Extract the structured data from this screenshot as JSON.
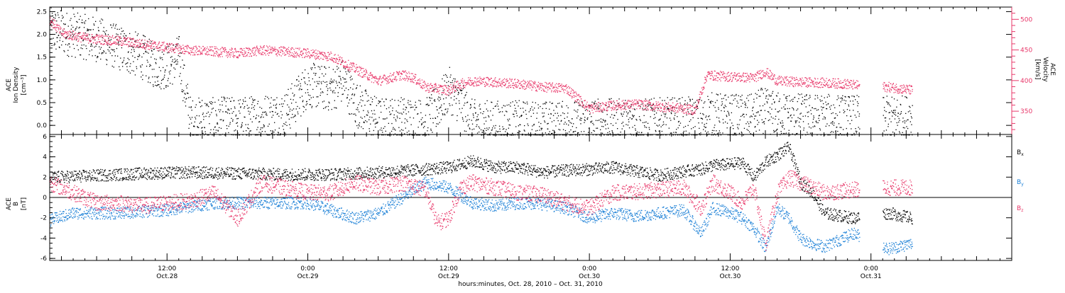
{
  "colors": {
    "black": "#000000",
    "pink": "#e8386a",
    "blue": "#1a7fd6",
    "axis": "#000000"
  },
  "time_axis": {
    "title": "hours:minutes, Oct. 28, 2010 – Oct. 31, 2010",
    "start_hour": 2.0,
    "end_hour": 84.0,
    "major_ticks": [
      {
        "hour": 12,
        "time": "12:00",
        "date": "Oct.28"
      },
      {
        "hour": 24,
        "time": "0:00",
        "date": "Oct.29"
      },
      {
        "hour": 36,
        "time": "12:00",
        "date": "Oct.29"
      },
      {
        "hour": 48,
        "time": "0:00",
        "date": "Oct.30"
      },
      {
        "hour": 60,
        "time": "12:00",
        "date": "Oct.30"
      },
      {
        "hour": 72,
        "time": "0:00",
        "date": "Oct.31"
      }
    ]
  },
  "chart_data": [
    {
      "type": "scatter",
      "panel": "top",
      "ylabel_left": [
        "ACE",
        "Ion Density",
        "[cm⁻³]"
      ],
      "ylabel_right": [
        "ACE",
        "Velocity",
        "[km/s]"
      ],
      "ylim_left": [
        -0.2,
        2.6
      ],
      "left_ticks": [
        "0.0",
        "0.5",
        "1.0",
        "1.5",
        "2.0",
        "2.5"
      ],
      "ylim_right": [
        312,
        520
      ],
      "right_ticks": [
        "350",
        "400",
        "450",
        "500"
      ],
      "data_gap_hours": [
        71.0,
        73.0
      ],
      "series": [
        {
          "axis": "left",
          "color_key": "black",
          "jitter": 0.5,
          "points_per_hour": 40,
          "x": [
            2.0,
            4,
            6,
            8,
            10,
            11,
            12,
            13,
            14,
            15,
            16,
            17,
            18,
            20,
            22,
            24,
            26,
            27,
            28,
            29,
            30,
            32,
            34,
            35,
            36,
            37,
            38,
            40,
            42,
            44,
            46,
            48,
            50,
            52,
            54,
            56,
            57.8,
            58,
            60,
            62,
            62.5,
            64,
            66,
            68,
            70.6,
            73.5,
            75.5
          ],
          "y": [
            2.1,
            2.0,
            1.9,
            1.7,
            1.5,
            1.3,
            1.3,
            1.5,
            0.1,
            0.15,
            0.12,
            0.15,
            0.13,
            0.2,
            0.25,
            0.9,
            0.8,
            1.0,
            0.5,
            0.3,
            0.12,
            0.15,
            0.1,
            0.4,
            0.8,
            0.5,
            0.08,
            0.06,
            0.06,
            0.05,
            0.05,
            0.12,
            0.1,
            0.1,
            0.12,
            0.14,
            0.12,
            0.25,
            0.2,
            0.2,
            0.35,
            0.25,
            0.22,
            0.2,
            0.18,
            0.15,
            0.2
          ]
        },
        {
          "axis": "right",
          "color_key": "pink",
          "jitter": 8,
          "points_per_hour": 40,
          "x": [
            2.0,
            3.0,
            5,
            8,
            10,
            12,
            14,
            16,
            18,
            20,
            22,
            24,
            26,
            28,
            30,
            32,
            33,
            34,
            36,
            37,
            38,
            40,
            42,
            44,
            46,
            48,
            50,
            52,
            54,
            56,
            57,
            58,
            59,
            60,
            62,
            63,
            64,
            66,
            68,
            70,
            70.6,
            73.5,
            75.5
          ],
          "y": [
            500,
            478,
            470,
            465,
            460,
            455,
            450,
            448,
            445,
            450,
            448,
            445,
            440,
            420,
            400,
            410,
            405,
            390,
            385,
            395,
            400,
            398,
            395,
            390,
            388,
            355,
            360,
            362,
            358,
            355,
            352,
            410,
            408,
            407,
            405,
            415,
            400,
            398,
            397,
            395,
            393,
            390,
            385
          ]
        }
      ]
    },
    {
      "type": "scatter",
      "panel": "bottom",
      "ylabel_left": [
        "ACE",
        "B",
        "[nT]"
      ],
      "ylim": [
        -6.2,
        6.2
      ],
      "left_ticks": [
        "-6",
        "-4",
        "-2",
        "0",
        "2",
        "4",
        "6"
      ],
      "zero_line": true,
      "data_gap_hours": [
        71.0,
        73.0
      ],
      "legend_position": "right",
      "series": [
        {
          "name": "B",
          "subscript": "x",
          "color_key": "black",
          "jitter": 0.6,
          "points_per_hour": 40,
          "x": [
            2.0,
            6,
            10,
            14,
            18,
            22,
            26,
            30,
            34,
            36,
            38,
            40,
            42,
            44,
            46,
            48,
            50,
            52,
            54,
            56,
            57.5,
            58.5,
            60,
            61,
            62,
            63,
            64,
            65,
            66,
            67,
            68,
            70.5,
            73.5,
            75.5
          ],
          "y": [
            2.0,
            2.2,
            2.4,
            2.5,
            2.4,
            2.3,
            2.3,
            2.5,
            2.8,
            3.0,
            3.6,
            3.0,
            3.0,
            2.5,
            2.7,
            2.8,
            3.0,
            2.6,
            2.2,
            2.6,
            2.8,
            3.2,
            3.3,
            3.5,
            2.0,
            3.5,
            4.2,
            5.0,
            1.5,
            0.5,
            -1.5,
            -2.0,
            -1.5,
            -2.0
          ]
        },
        {
          "name": "B",
          "subscript": "y",
          "color_key": "blue",
          "jitter": 0.6,
          "points_per_hour": 40,
          "x": [
            2.0,
            4,
            8,
            12,
            16,
            20,
            24,
            28,
            30,
            32,
            34,
            36,
            38,
            40,
            42,
            44,
            46,
            48,
            50,
            52,
            54,
            56,
            57.5,
            58.5,
            60,
            61,
            62,
            63,
            64,
            65,
            66,
            67,
            68,
            70.5,
            73.5,
            75.5
          ],
          "y": [
            -2.2,
            -1.5,
            -1.5,
            -1.2,
            -0.5,
            -0.5,
            -0.5,
            -2.0,
            -1.5,
            0.0,
            1.5,
            1.0,
            -0.5,
            -0.8,
            -0.5,
            -0.6,
            -1.0,
            -2.0,
            -1.5,
            -1.8,
            -1.5,
            -1.2,
            -3.5,
            -1.0,
            -1.5,
            -2.0,
            -3.0,
            -5.0,
            -1.0,
            -2.0,
            -4.0,
            -4.5,
            -4.8,
            -3.5,
            -5.0,
            -4.5
          ]
        },
        {
          "name": "B",
          "subscript": "z",
          "color_key": "pink",
          "jitter": 0.8,
          "points_per_hour": 40,
          "x": [
            2.0,
            4,
            6,
            8,
            10,
            12,
            14,
            16,
            18,
            20,
            22,
            24,
            26,
            28,
            30,
            32,
            34,
            35,
            36,
            37,
            38,
            40,
            42,
            44,
            46,
            48,
            50,
            52,
            54,
            56,
            57.5,
            58.5,
            60,
            61,
            62,
            63,
            64,
            65,
            66,
            67,
            68,
            70.5,
            73.5,
            75.5
          ],
          "y": [
            1.5,
            0.5,
            -0.5,
            -0.5,
            -0.8,
            -0.5,
            -0.3,
            0.5,
            -2.0,
            1.5,
            1.0,
            0.5,
            0.5,
            1.5,
            1.0,
            1.5,
            0.8,
            -2.5,
            -2.0,
            1.0,
            1.5,
            1.0,
            0.5,
            0.3,
            -0.5,
            -1.0,
            0.5,
            0.6,
            0.8,
            1.0,
            -1.0,
            1.5,
            0.5,
            -0.5,
            1.0,
            -4.5,
            0.5,
            2.0,
            1.5,
            1.0,
            0.5,
            0.8,
            1.0,
            1.0
          ]
        }
      ]
    }
  ]
}
